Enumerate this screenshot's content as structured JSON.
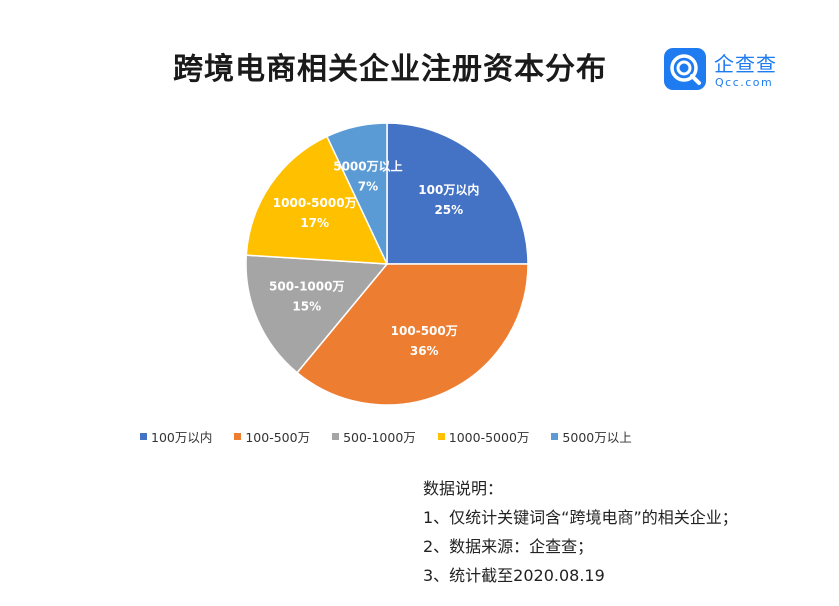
{
  "title": "跨境电商相关企业注册资本分布",
  "logo": {
    "name": "企查查",
    "domain": "Qcc.com",
    "brand_color": "#1f7cf0"
  },
  "chart_data": {
    "type": "pie",
    "title": "跨境电商相关企业注册资本分布",
    "legend_position": "bottom",
    "slices": [
      {
        "label": "100万以内",
        "value": 25,
        "display": "25%",
        "color": "#4472c4"
      },
      {
        "label": "100-500万",
        "value": 36,
        "display": "36%",
        "color": "#ed7d31"
      },
      {
        "label": "500-1000万",
        "value": 15,
        "display": "15%",
        "color": "#a5a5a5"
      },
      {
        "label": "1000-5000万",
        "value": 17,
        "display": "17%",
        "color": "#ffc000"
      },
      {
        "label": "5000万以上",
        "value": 7,
        "display": "7%",
        "color": "#5b9bd5"
      }
    ]
  },
  "notes": {
    "heading": "数据说明：",
    "items": [
      "1、仅统计关键词含“跨境电商”的相关企业；",
      "2、数据来源：企查查；",
      "3、统计截至2020.08.19"
    ]
  }
}
